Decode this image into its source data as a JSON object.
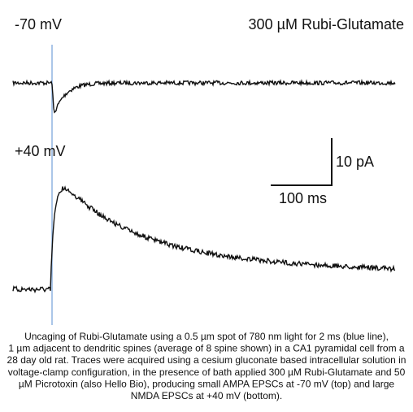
{
  "figure": {
    "top_label": "-70 mV",
    "compound_label": "300 µM Rubi-Glutamate",
    "bottom_label": "+40 mV",
    "scale_y_label": "10 pA",
    "scale_x_label": "100 ms"
  },
  "caption": {
    "lines": [
      "Uncaging of Rubi-Glutamate using a 0.5 µm spot of 780 nm light for 2 ms (blue line),",
      "1 µm adjacent to dendritic spines (average of 8 spine shown) in a CA1 pyramidal cell from a",
      "28 day old rat. Traces were acquired using a cesium gluconate based intracellular solution in",
      "voltage-clamp configuration, in the presence of bath applied 300 µM Rubi-Glutamate and 50",
      "µM Picrotoxin (also Hello Bio), producing small AMPA EPSCs at -70 mV (top) and large",
      "NMDA EPSCs at +40 mV (bottom)."
    ]
  }
}
